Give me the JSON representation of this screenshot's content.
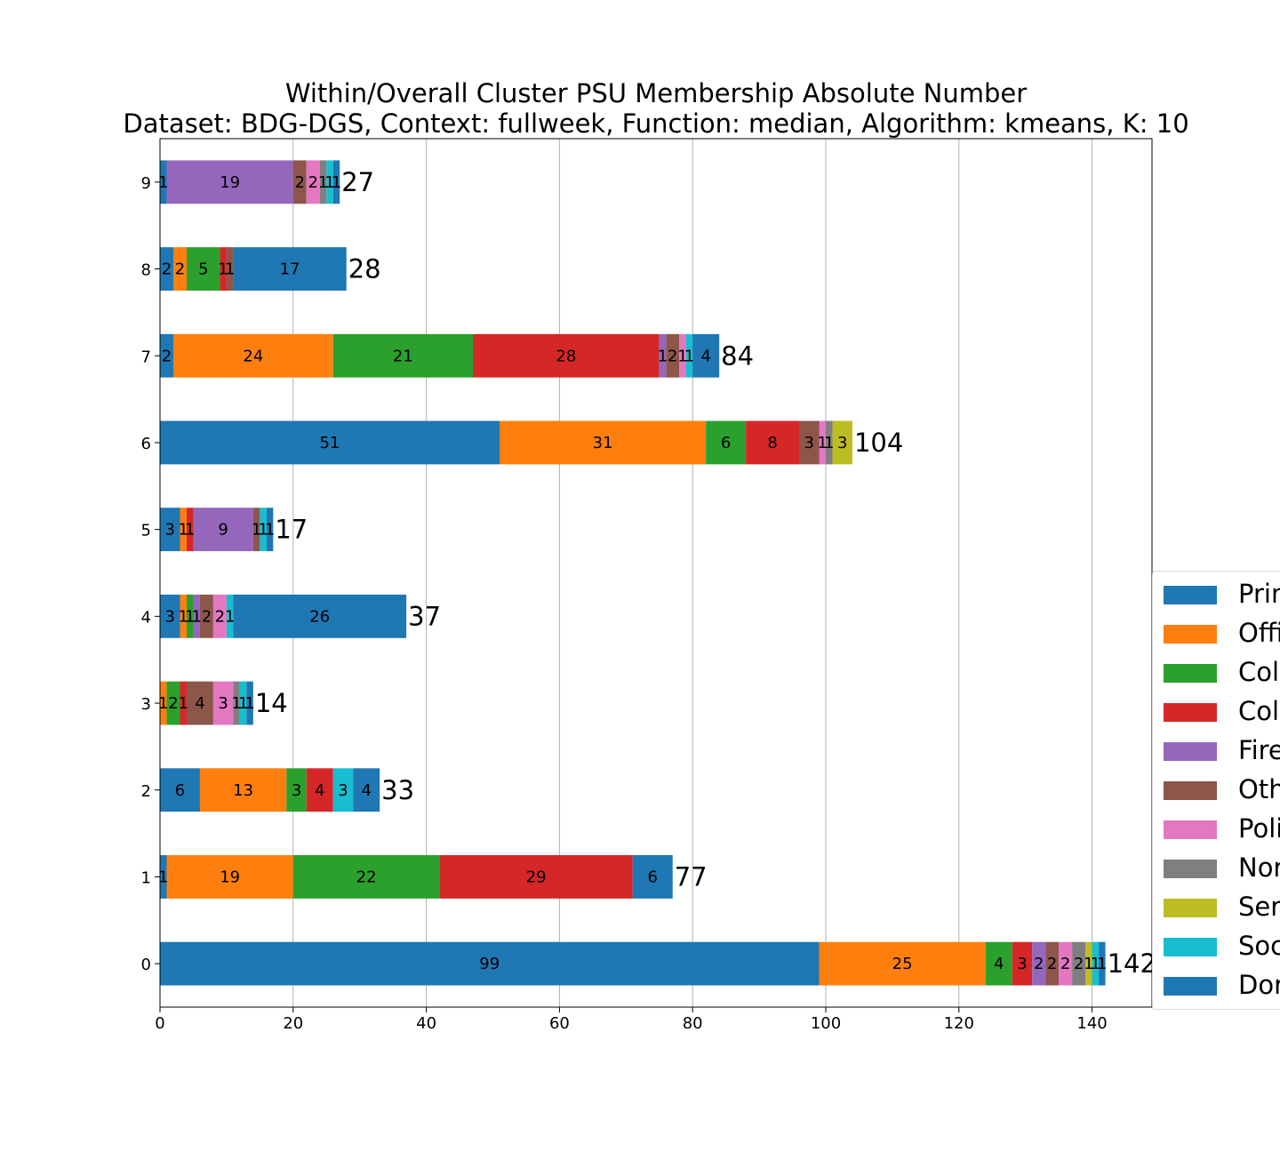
{
  "title": "Within/Overall Cluster PSU Membership Absolute Number",
  "subtitle": "Dataset: BDG-DGS, Context: fullweek, Function: median, Algorithm: kmeans, K: 10",
  "colors": {
    "blue": "#1f77b4",
    "orange": "#ff7f0e",
    "green": "#2ca02c",
    "red": "#d62728",
    "purple": "#9467bd",
    "brown": "#8c564b",
    "pink": "#e377c2",
    "gray": "#7f7f7f",
    "olive": "#bcbd22",
    "cyan": "#17becf"
  },
  "legend": {
    "items": [
      {
        "label": "Prim",
        "color": "#1f77b4"
      },
      {
        "label": "Offi",
        "color": "#ff7f0e"
      },
      {
        "label": "Col",
        "color": "#2ca02c"
      },
      {
        "label": "Col",
        "color": "#d62728"
      },
      {
        "label": "Fire",
        "color": "#9467bd"
      },
      {
        "label": "Oth",
        "color": "#8c564b"
      },
      {
        "label": "Poli",
        "color": "#e377c2"
      },
      {
        "label": "Nor",
        "color": "#7f7f7f"
      },
      {
        "label": "Ser",
        "color": "#bcbd22"
      },
      {
        "label": "Soc",
        "color": "#17becf"
      },
      {
        "label": "Dor",
        "color": "#1f77b4"
      }
    ]
  },
  "chart_data": {
    "type": "bar",
    "orientation": "horizontal",
    "stacked": true,
    "categories": [
      "0",
      "1",
      "2",
      "3",
      "4",
      "5",
      "6",
      "7",
      "8",
      "9"
    ],
    "series_colors": [
      "#1f77b4",
      "#ff7f0e",
      "#2ca02c",
      "#d62728",
      "#9467bd",
      "#8c564b",
      "#e377c2",
      "#7f7f7f",
      "#bcbd22",
      "#17becf",
      "#1f77b4"
    ],
    "series": [
      {
        "name": "Prim",
        "values": [
          99,
          1,
          6,
          0,
          3,
          3,
          51,
          2,
          2,
          1
        ]
      },
      {
        "name": "Offi",
        "values": [
          25,
          19,
          13,
          1,
          1,
          1,
          31,
          24,
          2,
          0
        ]
      },
      {
        "name": "Col",
        "values": [
          4,
          22,
          3,
          2,
          1,
          0,
          6,
          21,
          5,
          0
        ]
      },
      {
        "name": "Col",
        "values": [
          3,
          29,
          4,
          1,
          0,
          1,
          8,
          28,
          1,
          0
        ]
      },
      {
        "name": "Fire",
        "values": [
          2,
          0,
          0,
          0,
          1,
          9,
          0,
          1,
          0,
          19
        ]
      },
      {
        "name": "Oth",
        "values": [
          2,
          0,
          0,
          4,
          2,
          1,
          3,
          2,
          1,
          2
        ]
      },
      {
        "name": "Poli",
        "values": [
          2,
          0,
          0,
          3,
          2,
          0,
          1,
          1,
          0,
          2
        ]
      },
      {
        "name": "Nor",
        "values": [
          2,
          0,
          0,
          1,
          0,
          0,
          1,
          0,
          0,
          1
        ]
      },
      {
        "name": "Ser",
        "values": [
          1,
          0,
          0,
          0,
          0,
          0,
          3,
          0,
          0,
          0
        ]
      },
      {
        "name": "Soc",
        "values": [
          1,
          0,
          3,
          1,
          1,
          1,
          0,
          1,
          0,
          1
        ]
      },
      {
        "name": "Dor",
        "values": [
          1,
          6,
          4,
          1,
          26,
          1,
          0,
          4,
          17,
          1
        ]
      }
    ],
    "totals": [
      142,
      77,
      33,
      14,
      37,
      17,
      104,
      84,
      28,
      27
    ],
    "xlim": [
      0,
      149
    ],
    "xticks": [
      0,
      20,
      40,
      60,
      80,
      100,
      120,
      140
    ],
    "grid": "vertical",
    "legend_position": "lower-right, outside"
  }
}
